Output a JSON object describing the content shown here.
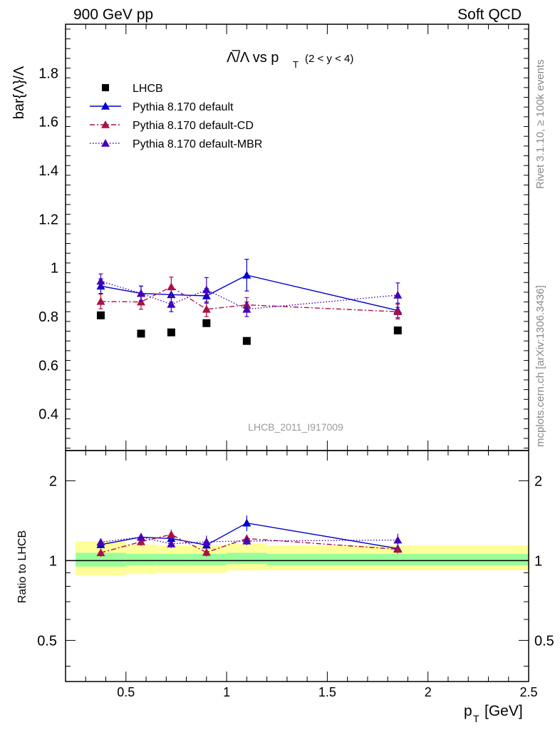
{
  "header": {
    "left": "900 GeV pp",
    "right": "Soft QCD"
  },
  "side_text": {
    "rivet": "Rivet 3.1.10, ≥ 100k events",
    "mcplots": "mcplots.cern.ch [arXiv:1306.3436]"
  },
  "chart_data": {
    "type": "scatter",
    "title_main": "Λ̅/Λ vs p",
    "title_sub": "T",
    "title_range": "(2 < y < 4)",
    "analysis_id": "LHCB_2011_I917009",
    "ylabel": "bar{Λ}/Λ",
    "ratio_ylabel": "Ratio to LHCB",
    "xlabel": "p",
    "xlabel_sub": "T",
    "xlabel_unit": "[GeV]",
    "xlim": [
      0.2,
      2.5
    ],
    "ylim": [
      0.25,
      2.0
    ],
    "ratio_ylim": [
      0.35,
      2.6
    ],
    "x_ticks": [
      "0.5",
      "1",
      "1.5",
      "2",
      "2.5"
    ],
    "x_tick_values": [
      0.5,
      1,
      1.5,
      2,
      2.5
    ],
    "y_ticks": [
      "0.4",
      "0.6",
      "0.8",
      "1",
      "1.2",
      "1.4",
      "1.6",
      "1.8"
    ],
    "y_tick_values": [
      0.4,
      0.6,
      0.8,
      1.0,
      1.2,
      1.4,
      1.6,
      1.8
    ],
    "ratio_y_ticks": [
      "0.5",
      "1",
      "2"
    ],
    "ratio_y_tick_values": [
      0.5,
      1,
      2
    ],
    "x": [
      0.375,
      0.575,
      0.725,
      0.9,
      1.1,
      1.85
    ],
    "bins": [
      [
        0.25,
        0.5
      ],
      [
        0.5,
        0.65
      ],
      [
        0.65,
        0.8
      ],
      [
        0.8,
        1.0
      ],
      [
        1.0,
        1.2
      ],
      [
        1.2,
        2.5
      ]
    ],
    "data": {
      "name": "LHCB",
      "values": [
        0.805,
        0.73,
        0.735,
        0.773,
        0.7,
        0.743
      ]
    },
    "band": {
      "inner_lo": [
        0.95,
        0.96,
        0.96,
        0.96,
        0.97,
        0.96
      ],
      "inner_hi": [
        1.07,
        1.06,
        1.06,
        1.06,
        1.07,
        1.06
      ],
      "outer_lo": [
        0.88,
        0.89,
        0.9,
        0.9,
        0.92,
        0.92
      ],
      "outer_hi": [
        1.18,
        1.15,
        1.14,
        1.14,
        1.16,
        1.14
      ]
    },
    "series": [
      {
        "name": "Pythia 8.170 default",
        "color": "#0000cc",
        "dash": "",
        "values": [
          0.925,
          0.895,
          0.89,
          0.885,
          0.97,
          0.825
        ],
        "errors": [
          0.03,
          0.03,
          0.03,
          0.03,
          0.065,
          0.03
        ]
      },
      {
        "name": "Pythia 8.170 default-CD",
        "color": "#aa1144",
        "dash": "7 3 2 3",
        "values": [
          0.862,
          0.86,
          0.922,
          0.83,
          0.848,
          0.82
        ],
        "errors": [
          0.03,
          0.03,
          0.04,
          0.03,
          0.03,
          0.03
        ]
      },
      {
        "name": "Pythia 8.170 default-MBR",
        "color": "#4400bb",
        "dash": "1.5 2.5",
        "values": [
          0.945,
          0.895,
          0.85,
          0.91,
          0.83,
          0.888
        ],
        "errors": [
          0.03,
          0.03,
          0.03,
          0.05,
          0.03,
          0.05
        ]
      }
    ],
    "legend_position": "top-left"
  }
}
